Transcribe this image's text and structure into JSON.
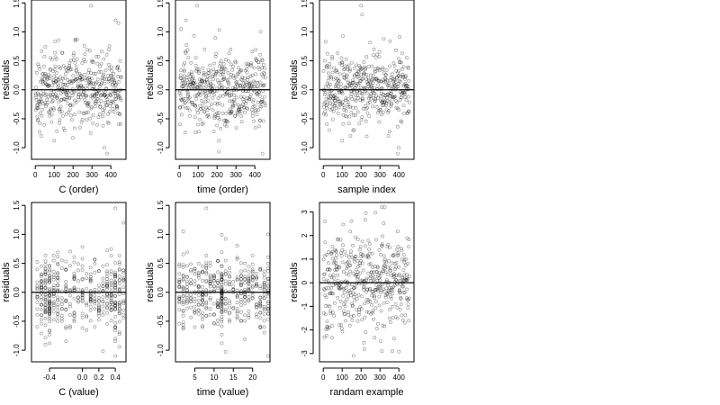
{
  "chart_data": [
    {
      "id": "p1",
      "type": "scatter",
      "xlabel": "C (order)",
      "ylabel": "residuals",
      "xlim": [
        -20,
        480
      ],
      "ylim": [
        -1.2,
        1.55
      ],
      "xticks": [
        0,
        100,
        200,
        300,
        400
      ],
      "xtick_labels": [
        "0",
        "100",
        "200",
        "300",
        "400"
      ],
      "yticks": [
        -1.0,
        -0.5,
        0.0,
        0.5,
        1.0,
        1.5
      ],
      "ytick_labels": [
        "-1.0",
        "-0.5",
        "0.0",
        "0.5",
        "1.0",
        "1.5"
      ],
      "hline": 0,
      "n": 460,
      "sd": 0.32,
      "highlights": [
        {
          "x": 295,
          "y": 1.45
        },
        {
          "x": 425,
          "y": 1.2
        },
        {
          "x": 440,
          "y": 1.15
        },
        {
          "x": 380,
          "y": -1.1
        },
        {
          "x": 365,
          "y": -1.0
        },
        {
          "x": 100,
          "y": -0.88
        }
      ]
    },
    {
      "id": "p2",
      "type": "scatter",
      "xlabel": "time (order)",
      "ylabel": "residuals",
      "xlim": [
        -20,
        480
      ],
      "ylim": [
        -1.2,
        1.55
      ],
      "xticks": [
        0,
        100,
        200,
        300,
        400
      ],
      "xtick_labels": [
        "0",
        "100",
        "200",
        "300",
        "400"
      ],
      "yticks": [
        -1.0,
        -0.5,
        0.0,
        0.5,
        1.0,
        1.5
      ],
      "ytick_labels": [
        "-1.0",
        "-0.5",
        "0.0",
        "0.5",
        "1.0",
        "1.5"
      ],
      "hline": 0,
      "n": 460,
      "sd": 0.32,
      "highlights": [
        {
          "x": 95,
          "y": 1.45
        },
        {
          "x": 35,
          "y": 1.2
        },
        {
          "x": 10,
          "y": 1.05
        },
        {
          "x": 440,
          "y": -1.1
        },
        {
          "x": 210,
          "y": -0.88
        },
        {
          "x": 430,
          "y": 1.0
        }
      ]
    },
    {
      "id": "p3",
      "type": "scatter",
      "xlabel": "sample index",
      "ylabel": "residuals",
      "xlim": [
        -20,
        480
      ],
      "ylim": [
        -1.2,
        1.55
      ],
      "xticks": [
        0,
        100,
        200,
        300,
        400
      ],
      "xtick_labels": [
        "0",
        "100",
        "200",
        "300",
        "400"
      ],
      "yticks": [
        -1.0,
        -0.5,
        0.0,
        0.5,
        1.0,
        1.5
      ],
      "ytick_labels": [
        "-1.0",
        "-0.5",
        "0.0",
        "0.5",
        "1.0",
        "1.5"
      ],
      "hline": 0,
      "n": 460,
      "sd": 0.32,
      "highlights": [
        {
          "x": 200,
          "y": 1.45
        },
        {
          "x": 205,
          "y": 1.3
        },
        {
          "x": 395,
          "y": -1.1
        },
        {
          "x": 400,
          "y": -1.0
        },
        {
          "x": 100,
          "y": -0.88
        },
        {
          "x": 320,
          "y": 0.88
        }
      ]
    },
    {
      "id": "p4",
      "type": "scatter",
      "xlabel": "C (value)",
      "ylabel": "residuals",
      "xlim": [
        -0.62,
        0.53
      ],
      "ylim": [
        -1.2,
        1.55
      ],
      "xticks": [
        -0.4,
        0.0,
        0.2,
        0.4
      ],
      "xtick_labels": [
        "-0.4",
        "0.0",
        "0.2",
        "0.4"
      ],
      "yticks": [
        -1.0,
        -0.5,
        0.0,
        0.5,
        1.0,
        1.5
      ],
      "ytick_labels": [
        "-1.0",
        "-0.5",
        "0.0",
        "0.5",
        "1.0",
        "1.5"
      ],
      "hline": 0,
      "n": 460,
      "sd": 0.32,
      "columns": [
        -0.55,
        -0.5,
        -0.45,
        -0.4,
        -0.35,
        -0.3,
        -0.25,
        -0.2,
        -0.15,
        -0.1,
        -0.05,
        0.0,
        0.05,
        0.1,
        0.15,
        0.2,
        0.25,
        0.3,
        0.35,
        0.4,
        0.45,
        0.5
      ],
      "column_weights": [
        2,
        3,
        3,
        5,
        2,
        2,
        1,
        2,
        1,
        2,
        1,
        2,
        1,
        2,
        1,
        2,
        2,
        2,
        3,
        4,
        3,
        3
      ],
      "highlights": [
        {
          "x": 0.4,
          "y": 1.45
        },
        {
          "x": 0.5,
          "y": 1.2
        },
        {
          "x": 0.4,
          "y": -1.1
        },
        {
          "x": -0.4,
          "y": -0.88
        }
      ]
    },
    {
      "id": "p5",
      "type": "scatter",
      "xlabel": "time (value)",
      "ylabel": "residuals",
      "xlim": [
        0,
        24.5
      ],
      "ylim": [
        -1.2,
        1.55
      ],
      "xticks": [
        5,
        10,
        15,
        20
      ],
      "xtick_labels": [
        "5",
        "10",
        "15",
        "20"
      ],
      "yticks": [
        -1.0,
        -0.5,
        0.0,
        0.5,
        1.0,
        1.5
      ],
      "ytick_labels": [
        "-1.0",
        "-0.5",
        "0.0",
        "0.5",
        "1.0",
        "1.5"
      ],
      "hline": 0,
      "n": 460,
      "sd": 0.32,
      "columns": [
        1,
        2,
        3,
        4,
        5,
        6,
        7,
        8,
        9,
        10,
        11,
        12,
        13,
        14,
        15,
        16,
        17,
        18,
        19,
        20,
        21,
        22,
        23,
        24
      ],
      "column_weights": [
        2,
        2,
        2,
        2,
        2,
        2,
        2,
        2,
        2,
        2,
        2,
        5,
        2,
        2,
        2,
        2,
        2,
        2,
        2,
        2,
        2,
        2,
        2,
        4
      ],
      "highlights": [
        {
          "x": 8,
          "y": 1.45
        },
        {
          "x": 2,
          "y": 1.05
        },
        {
          "x": 24,
          "y": 1.0
        },
        {
          "x": 24,
          "y": -1.1
        },
        {
          "x": 12,
          "y": -0.88
        }
      ]
    },
    {
      "id": "p6",
      "type": "scatter",
      "xlabel": "randam example",
      "ylabel": "residuals",
      "xlim": [
        -20,
        480
      ],
      "ylim": [
        -3.35,
        3.4
      ],
      "xticks": [
        0,
        100,
        200,
        300,
        400
      ],
      "xtick_labels": [
        "0",
        "100",
        "200",
        "300",
        "400"
      ],
      "yticks": [
        -3,
        -2,
        -1,
        0,
        1,
        2,
        3
      ],
      "ytick_labels": [
        "-3",
        "-2",
        "-1",
        "0",
        "1",
        "2",
        "3"
      ],
      "hline": 0,
      "n": 460,
      "sd": 1.0,
      "highlights": [
        {
          "x": 310,
          "y": 3.2
        },
        {
          "x": 325,
          "y": 3.2
        },
        {
          "x": 160,
          "y": -3.1
        },
        {
          "x": 10,
          "y": 2.6
        },
        {
          "x": 310,
          "y": -2.9
        }
      ]
    }
  ]
}
